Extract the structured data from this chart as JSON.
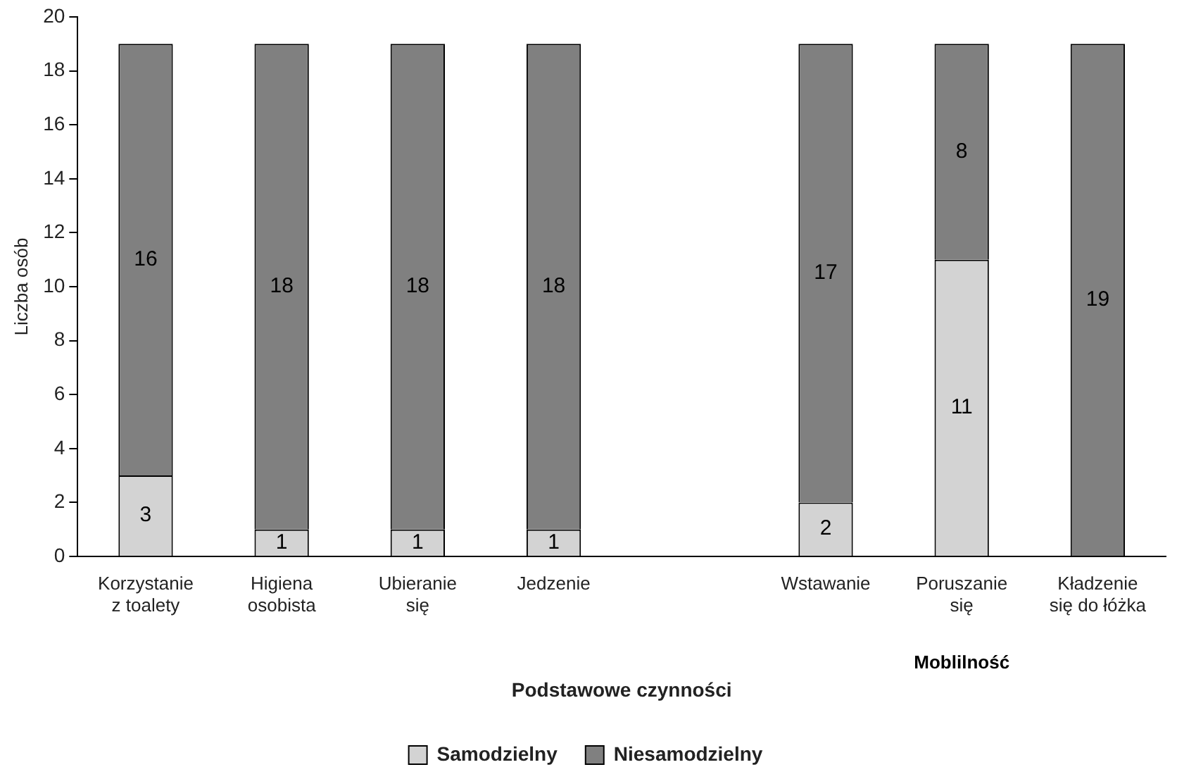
{
  "chart_data": {
    "type": "bar",
    "stacked": true,
    "categories": [
      "Korzystanie\nz toalety",
      "Higiena\nosobista",
      "Ubieranie\nsię",
      "Jedzenie",
      null,
      "Wstawanie",
      "Poruszanie\nsię",
      "Kładzenie\nsię do łóżka"
    ],
    "series": [
      {
        "name": "Samodzielny",
        "color": "#d3d3d3",
        "values": [
          3,
          1,
          1,
          1,
          null,
          2,
          11,
          0
        ],
        "value_labels": [
          "3",
          "1",
          "1",
          "1",
          null,
          "2",
          "11",
          null
        ]
      },
      {
        "name": "Niesamodzielny",
        "color": "#808080",
        "values": [
          16,
          18,
          18,
          18,
          null,
          17,
          8,
          19
        ],
        "value_labels": [
          "16",
          "18",
          "18",
          "18",
          null,
          "17",
          "8",
          "19"
        ]
      }
    ],
    "xlabel": "Podstawowe czynności",
    "ylabel": "Liczba osób",
    "annotations": [
      "Moblilność"
    ],
    "ylim": [
      0,
      20
    ],
    "yticks": [
      0,
      2,
      4,
      6,
      8,
      10,
      12,
      14,
      16,
      18,
      20
    ],
    "grid": false,
    "legend": "bottom"
  }
}
